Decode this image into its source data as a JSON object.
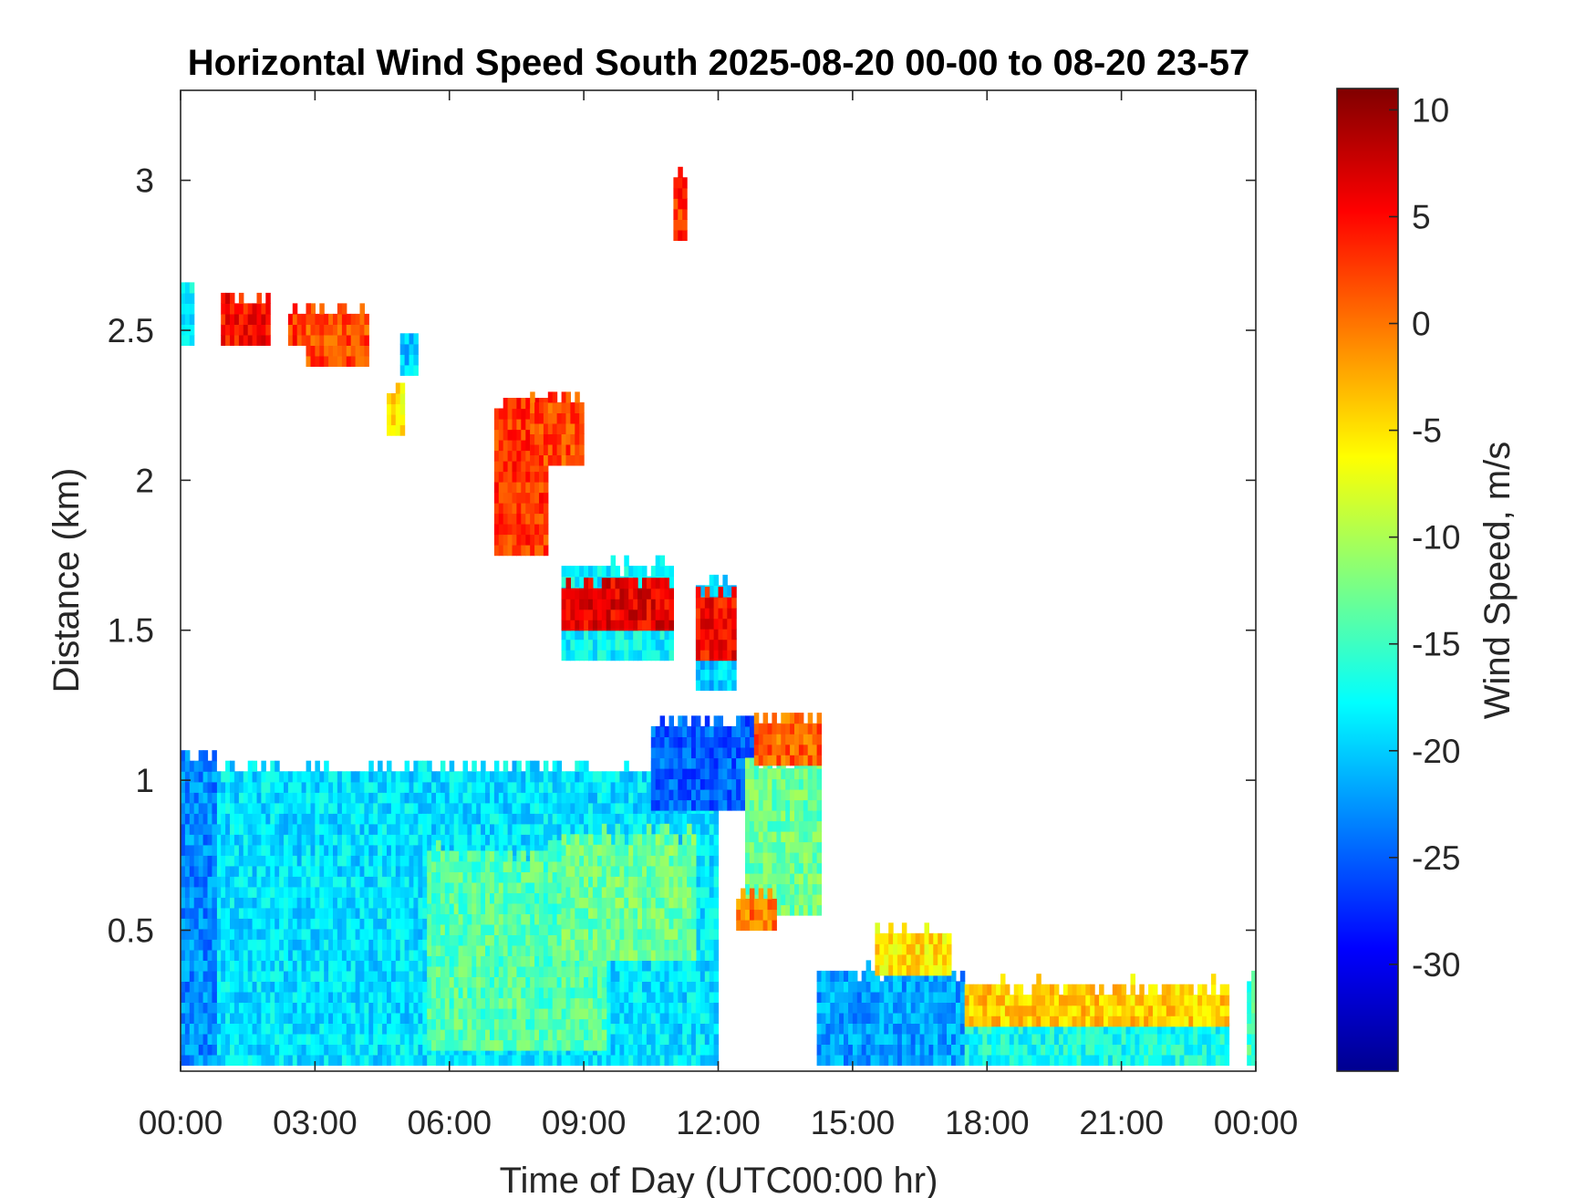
{
  "chart_data": {
    "type": "heatmap",
    "title": "Horizontal Wind Speed South 2025-08-20 00-00 to 08-20 23-57",
    "xlabel": "Time of Day (UTC00:00 hr)",
    "ylabel": "Distance (km)",
    "colorbar_label": "Wind Speed, m/s",
    "xlim": [
      0,
      24
    ],
    "ylim": [
      0.03,
      3.3
    ],
    "clim": [
      -35,
      11
    ],
    "x_ticks": [
      {
        "value": 0,
        "label": "00:00"
      },
      {
        "value": 3,
        "label": "03:00"
      },
      {
        "value": 6,
        "label": "06:00"
      },
      {
        "value": 9,
        "label": "09:00"
      },
      {
        "value": 12,
        "label": "12:00"
      },
      {
        "value": 15,
        "label": "15:00"
      },
      {
        "value": 18,
        "label": "18:00"
      },
      {
        "value": 21,
        "label": "21:00"
      },
      {
        "value": 24,
        "label": "00:00"
      }
    ],
    "y_ticks": [
      {
        "value": 0.5,
        "label": "0.5"
      },
      {
        "value": 1,
        "label": "1"
      },
      {
        "value": 1.5,
        "label": "1.5"
      },
      {
        "value": 2,
        "label": "2"
      },
      {
        "value": 2.5,
        "label": "2.5"
      },
      {
        "value": 3,
        "label": "3"
      }
    ],
    "colorbar_ticks": [
      {
        "value": 10,
        "label": "10"
      },
      {
        "value": 5,
        "label": "5"
      },
      {
        "value": 0,
        "label": "0"
      },
      {
        "value": -5,
        "label": "-5"
      },
      {
        "value": -10,
        "label": "-10"
      },
      {
        "value": -15,
        "label": "-15"
      },
      {
        "value": -20,
        "label": "-20"
      },
      {
        "value": -25,
        "label": "-25"
      },
      {
        "value": -30,
        "label": "-30"
      }
    ],
    "colormap": "jet",
    "grid": false,
    "regions": [
      {
        "t0": 0.0,
        "t1": 12.0,
        "d0": 0.05,
        "d1": 1.02,
        "v": -19
      },
      {
        "t0": 0.0,
        "t1": 0.8,
        "d0": 0.05,
        "d1": 1.07,
        "v": -23
      },
      {
        "t0": 5.5,
        "t1": 9.5,
        "d0": 0.1,
        "d1": 0.75,
        "v": -14
      },
      {
        "t0": 8.5,
        "t1": 11.5,
        "d0": 0.4,
        "d1": 0.8,
        "v": -13
      },
      {
        "t0": 10.5,
        "t1": 12.8,
        "d0": 0.9,
        "d1": 1.18,
        "v": -25
      },
      {
        "t0": 12.6,
        "t1": 14.3,
        "d0": 0.55,
        "d1": 1.05,
        "v": -13
      },
      {
        "t0": 12.8,
        "t1": 14.3,
        "d0": 1.05,
        "d1": 1.2,
        "v": 1
      },
      {
        "t0": 12.4,
        "t1": 13.3,
        "d0": 0.5,
        "d1": 0.6,
        "v": 0
      },
      {
        "t0": 14.2,
        "t1": 17.5,
        "d0": 0.05,
        "d1": 0.35,
        "v": -22
      },
      {
        "t0": 15.5,
        "t1": 17.2,
        "d0": 0.35,
        "d1": 0.48,
        "v": -5
      },
      {
        "t0": 17.5,
        "t1": 23.4,
        "d0": 0.05,
        "d1": 0.18,
        "v": -17
      },
      {
        "t0": 17.5,
        "t1": 23.4,
        "d0": 0.18,
        "d1": 0.3,
        "v": -4
      },
      {
        "t0": 23.8,
        "t1": 24.0,
        "d0": 0.05,
        "d1": 0.35,
        "v": -15
      },
      {
        "t0": 0.0,
        "t1": 0.3,
        "d0": 2.45,
        "d1": 2.65,
        "v": -18
      },
      {
        "t0": 0.9,
        "t1": 2.0,
        "d0": 2.45,
        "d1": 2.6,
        "v": 5
      },
      {
        "t0": 2.4,
        "t1": 3.0,
        "d0": 2.45,
        "d1": 2.55,
        "v": 3
      },
      {
        "t0": 2.8,
        "t1": 4.2,
        "d0": 2.38,
        "d1": 2.55,
        "v": 2
      },
      {
        "t0": 4.6,
        "t1": 5.0,
        "d0": 2.15,
        "d1": 2.3,
        "v": -5
      },
      {
        "t0": 4.9,
        "t1": 5.3,
        "d0": 2.35,
        "d1": 2.48,
        "v": -20
      },
      {
        "t0": 7.0,
        "t1": 8.2,
        "d0": 1.75,
        "d1": 2.25,
        "v": 3
      },
      {
        "t0": 7.8,
        "t1": 9.0,
        "d0": 2.05,
        "d1": 2.27,
        "v": 2
      },
      {
        "t0": 8.5,
        "t1": 11.0,
        "d0": 1.4,
        "d1": 1.7,
        "v": -18
      },
      {
        "t0": 8.5,
        "t1": 11.0,
        "d0": 1.5,
        "d1": 1.65,
        "v": 6
      },
      {
        "t0": 11.5,
        "t1": 12.4,
        "d0": 1.3,
        "d1": 1.65,
        "v": -20
      },
      {
        "t0": 11.5,
        "t1": 12.4,
        "d0": 1.4,
        "d1": 1.6,
        "v": 5
      },
      {
        "t0": 11.0,
        "t1": 11.3,
        "d0": 2.8,
        "d1": 3.0,
        "v": 3
      }
    ]
  }
}
